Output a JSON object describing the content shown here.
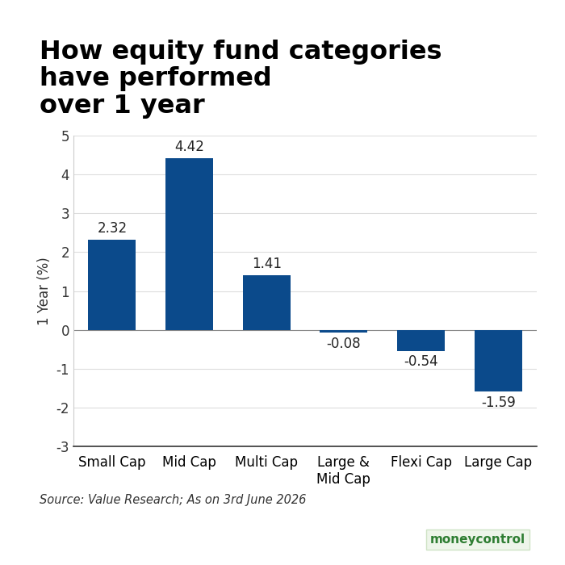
{
  "chart_data": {
    "type": "bar",
    "title": "How equity fund categories\nhave performed\nover 1 year",
    "y_label": "1 Year (%)",
    "categories": [
      "Small Cap",
      "Mid Cap",
      "Multi Cap",
      "Large &\nMid Cap",
      "Flexi Cap",
      "Large Cap"
    ],
    "values": [
      2.32,
      4.42,
      1.41,
      -0.08,
      -0.54,
      -1.59
    ],
    "color": "#0b4a8b",
    "ylim": [
      -3,
      5
    ],
    "yticks": [
      -3,
      -2,
      -1,
      0,
      1,
      2,
      3,
      4,
      5
    ],
    "grid": true,
    "data_labels": true,
    "annotations": [
      "Source: Value Research; As on 3rd June 2026",
      "moneycontrol"
    ]
  }
}
